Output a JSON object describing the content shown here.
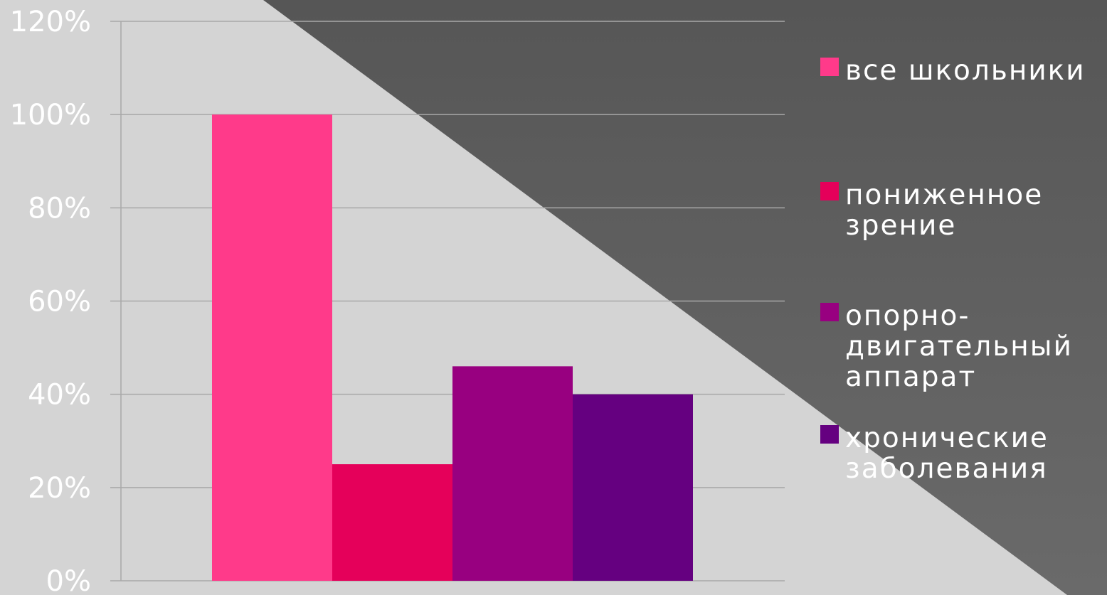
{
  "chart_data": {
    "type": "bar",
    "categories": [
      ""
    ],
    "series": [
      {
        "name": "все школьники",
        "values": [
          1.0
        ],
        "color": "#ff3a8a"
      },
      {
        "name": "пониженное зрение",
        "values": [
          0.25
        ],
        "color": "#e5005a"
      },
      {
        "name": "опорно-двигательный аппарат",
        "values": [
          0.46
        ],
        "color": "#980080"
      },
      {
        "name": "хронические заболевания",
        "values": [
          0.4
        ],
        "color": "#650080"
      }
    ],
    "ylim": [
      0,
      1.2
    ],
    "yticks": [
      "0%",
      "20%",
      "40%",
      "60%",
      "80%",
      "100%",
      "120%"
    ],
    "grid": true,
    "legend": "right",
    "title": "",
    "xlabel": "",
    "ylabel": ""
  },
  "background": {
    "light": "#d4d4d4",
    "dark": "#5a5a5a"
  }
}
